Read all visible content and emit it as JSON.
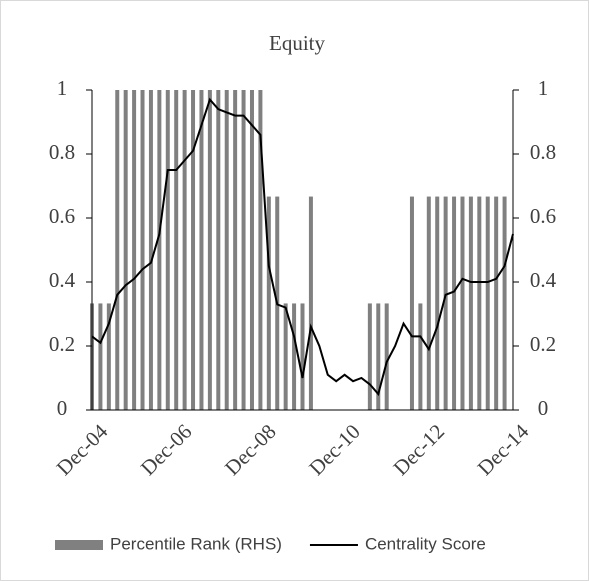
{
  "chart_data": {
    "type": "bar_line",
    "title": "Equity",
    "categories": [
      "Dec-04",
      null,
      null,
      null,
      null,
      null,
      null,
      null,
      null,
      null,
      "Dec-06",
      null,
      null,
      null,
      null,
      null,
      null,
      null,
      null,
      null,
      "Dec-08",
      null,
      null,
      null,
      null,
      null,
      null,
      null,
      null,
      null,
      "Dec-10",
      null,
      null,
      null,
      null,
      null,
      null,
      null,
      null,
      null,
      "Dec-12",
      null,
      null,
      null,
      null,
      null,
      null,
      null,
      null,
      null,
      "Dec-14"
    ],
    "series": [
      {
        "name": "Percentile Rank (RHS)",
        "type": "bar",
        "axis": "y2",
        "color": "#808080",
        "values": [
          0.333,
          0.333,
          0.333,
          1,
          1,
          1,
          1,
          1,
          1,
          1,
          1,
          1,
          1,
          1,
          1,
          1,
          1,
          1,
          1,
          1,
          1,
          0.667,
          0.667,
          0.333,
          0.333,
          0.333,
          0.667,
          0,
          0,
          0,
          0,
          0,
          0,
          0.333,
          0.333,
          0.333,
          0,
          0,
          0.667,
          0.333,
          0.667,
          0.667,
          0.667,
          0.667,
          0.667,
          0.667,
          0.667,
          0.667,
          0.667,
          0.667,
          0
        ]
      },
      {
        "name": "Centrality Score",
        "type": "line",
        "axis": "y",
        "color": "#000000",
        "values": [
          0.23,
          0.21,
          0.27,
          0.36,
          0.39,
          0.41,
          0.44,
          0.46,
          0.55,
          0.75,
          0.75,
          0.78,
          0.81,
          0.89,
          0.97,
          0.94,
          0.93,
          0.92,
          0.92,
          0.89,
          0.86,
          0.45,
          0.33,
          0.32,
          0.23,
          0.1,
          0.26,
          0.2,
          0.11,
          0.09,
          0.11,
          0.09,
          0.1,
          0.08,
          0.05,
          0.15,
          0.2,
          0.27,
          0.23,
          0.23,
          0.19,
          0.26,
          0.36,
          0.37,
          0.41,
          0.4,
          0.4,
          0.4,
          0.41,
          0.45,
          0.55
        ]
      }
    ],
    "ylim": [
      0,
      1
    ],
    "yticks": [
      0,
      0.2,
      0.4,
      0.6,
      0.8,
      1
    ],
    "y2lim": [
      0,
      1
    ],
    "y2ticks": [
      0,
      0.2,
      0.4,
      0.6,
      0.8,
      1
    ],
    "grid": false,
    "legend": "bottom"
  }
}
